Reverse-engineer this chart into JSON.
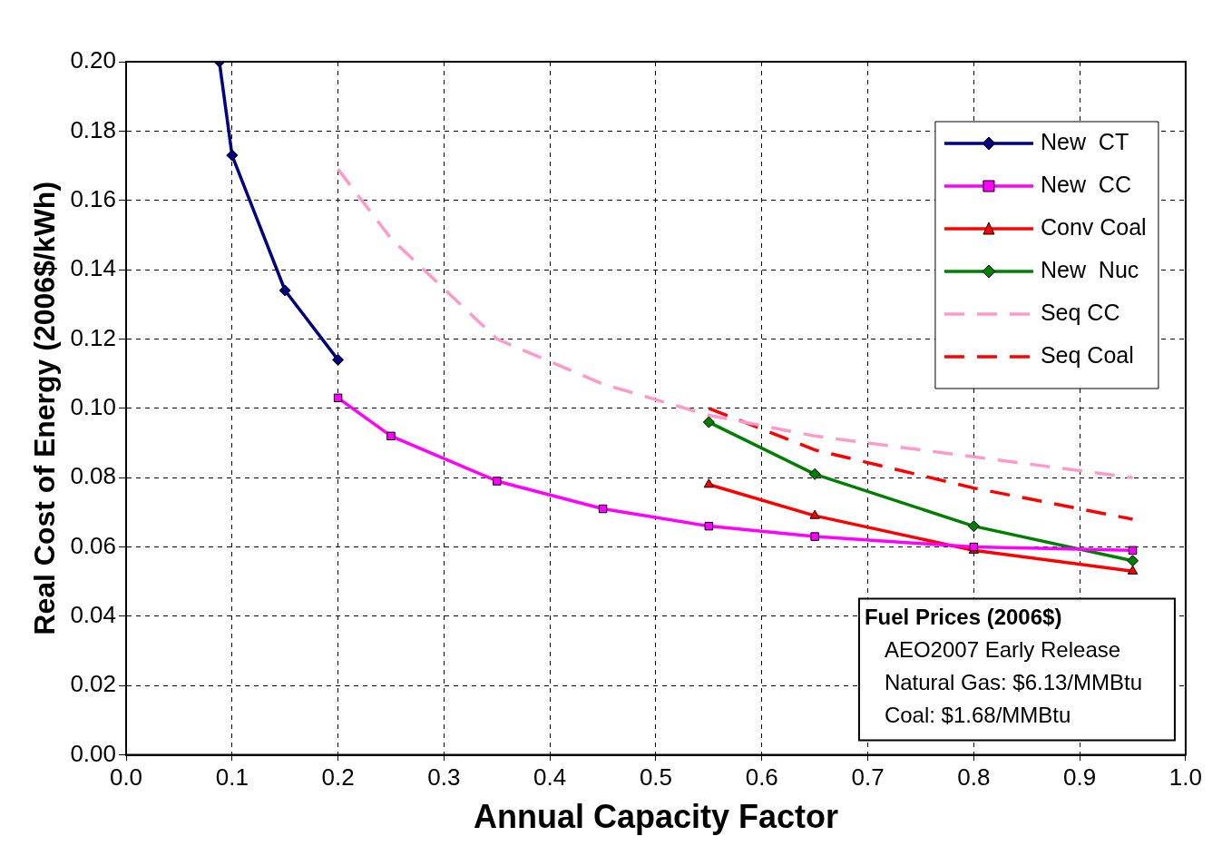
{
  "chart_data": {
    "type": "line",
    "xlabel": "Annual Capacity Factor",
    "ylabel": "Real Cost of Energy (2006$/kWh)",
    "xlim": [
      0,
      1
    ],
    "xticks": [
      {
        "value": 0,
        "label": "0.0"
      },
      0.1,
      0.2,
      0.3,
      0.4,
      0.5,
      0.6,
      0.7,
      0.8,
      0.9,
      {
        "value": 1,
        "label": "1.0"
      }
    ],
    "ylim": [
      0,
      0.2
    ],
    "yticks": [
      {
        "value": 0,
        "label": "0.00"
      },
      {
        "value": 0.02,
        "label": "0.02"
      },
      {
        "value": 0.04,
        "label": "0.04"
      },
      {
        "value": 0.06,
        "label": "0.06"
      },
      {
        "value": 0.08,
        "label": "0.08"
      },
      {
        "value": 0.1,
        "label": "0.10"
      },
      {
        "value": 0.12,
        "label": "0.12"
      },
      {
        "value": 0.14,
        "label": "0.14"
      },
      {
        "value": 0.16,
        "label": "0.16"
      },
      {
        "value": 0.18,
        "label": "0.18"
      },
      {
        "value": 0.2,
        "label": "0.20"
      }
    ],
    "grid": true,
    "legend": "top right",
    "series": [
      {
        "name": "New  CT",
        "color": "#000080",
        "marker": "diamond",
        "x": [
          0.088,
          0.1,
          0.15,
          0.2
        ],
        "values": [
          0.2,
          0.173,
          0.134,
          0.114
        ]
      },
      {
        "name": "New  CC",
        "color": "#ff00ff",
        "marker": "square",
        "x": [
          0.2,
          0.25,
          0.35,
          0.45,
          0.55,
          0.65,
          0.8,
          0.95
        ],
        "values": [
          0.103,
          0.092,
          0.079,
          0.071,
          0.066,
          0.063,
          0.06,
          0.059
        ]
      },
      {
        "name": "Conv Coal",
        "color": "#ff0000",
        "marker": "triangle",
        "x": [
          0.55,
          0.65,
          0.8,
          0.95
        ],
        "values": [
          0.078,
          0.069,
          0.059,
          0.053
        ]
      },
      {
        "name": "New  Nuc",
        "color": "#008000",
        "marker": "diamond",
        "x": [
          0.55,
          0.65,
          0.8,
          0.95
        ],
        "values": [
          0.096,
          0.081,
          0.066,
          0.056
        ]
      },
      {
        "name": "Seq CC",
        "color": "#ff99cc",
        "marker": "none",
        "line_style": "dashed",
        "x": [
          0.2,
          0.25,
          0.35,
          0.45,
          0.55,
          0.65,
          0.8,
          0.95
        ],
        "values": [
          0.169,
          0.149,
          0.12,
          0.107,
          0.098,
          0.092,
          0.086,
          0.08
        ]
      },
      {
        "name": "Seq Coal",
        "color": "#ff0000",
        "marker": "none",
        "line_style": "dashed",
        "x": [
          0.55,
          0.65,
          0.8,
          0.95
        ],
        "values": [
          0.1,
          0.088,
          0.077,
          0.068
        ]
      }
    ],
    "annotations": [
      "Fuel Prices (2006$)",
      "AEO2007 Early Release",
      "Natural Gas: $6.13/MMBtu",
      "Coal: $1.68/MMBtu"
    ]
  }
}
